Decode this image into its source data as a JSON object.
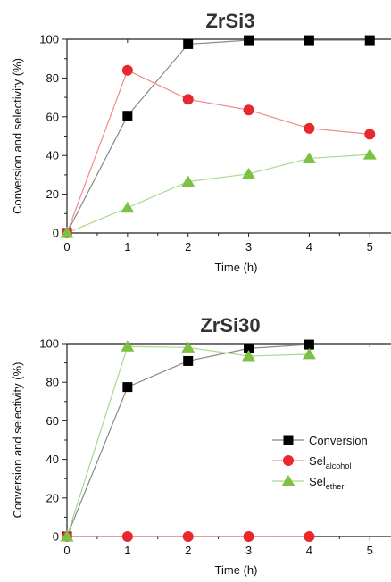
{
  "chart_data": [
    {
      "type": "line",
      "title": "ZrSi3",
      "xlabel": "Time (h)",
      "ylabel": "Conversion and selectivity (%)",
      "xlim": [
        0,
        5.35
      ],
      "ylim": [
        0,
        100
      ],
      "x_ticks": [
        "0",
        "1",
        "2",
        "3",
        "4",
        "5"
      ],
      "y_ticks": [
        "0",
        "20",
        "40",
        "60",
        "80",
        "100"
      ],
      "legend": "none",
      "series": [
        {
          "key": "conversion",
          "marker": "square",
          "color": "#000000",
          "line_color": "#888888",
          "x": [
            0,
            1,
            2,
            3,
            4,
            5
          ],
          "y": [
            0,
            60.5,
            97.5,
            99.5,
            99.5,
            99.5
          ]
        },
        {
          "key": "alcohol",
          "marker": "circle",
          "color": "#e8282d",
          "line_color": "#f08a8a",
          "x": [
            0,
            1,
            2,
            3,
            4,
            5
          ],
          "y": [
            0,
            84,
            69,
            63.5,
            54,
            51
          ]
        },
        {
          "key": "ether",
          "marker": "triangle",
          "color": "#7dc142",
          "line_color": "#a9d98a",
          "x": [
            0,
            1,
            2,
            3,
            4,
            5
          ],
          "y": [
            0,
            13,
            26.5,
            30.5,
            38.5,
            40.5
          ]
        }
      ]
    },
    {
      "type": "line",
      "title": "ZrSi30",
      "xlabel": "Time (h)",
      "ylabel": "Conversion and selectivity (%)",
      "xlim": [
        0,
        5.35
      ],
      "ylim": [
        0,
        100
      ],
      "x_ticks": [
        "0",
        "1",
        "2",
        "3",
        "4",
        "5"
      ],
      "y_ticks": [
        "0",
        "20",
        "40",
        "60",
        "80",
        "100"
      ],
      "legend": "right",
      "series": [
        {
          "key": "conversion",
          "name": "Conversion",
          "marker": "square",
          "color": "#000000",
          "line_color": "#888888",
          "x": [
            0,
            1,
            2,
            3,
            4
          ],
          "y": [
            0,
            77.5,
            91,
            97.5,
            99.5
          ]
        },
        {
          "key": "alcohol",
          "name": "Sel",
          "name_sub": "alcohol",
          "marker": "circle",
          "color": "#e8282d",
          "line_color": "#f08a8a",
          "x": [
            0,
            1,
            2,
            3,
            4
          ],
          "y": [
            0,
            0,
            0,
            0,
            0
          ]
        },
        {
          "key": "ether",
          "name": "Sel",
          "name_sub": "ether",
          "marker": "triangle",
          "color": "#7dc142",
          "line_color": "#a9d98a",
          "x": [
            0,
            1,
            2,
            3,
            4
          ],
          "y": [
            0,
            98.5,
            98,
            93.5,
            94.5
          ]
        }
      ]
    }
  ]
}
